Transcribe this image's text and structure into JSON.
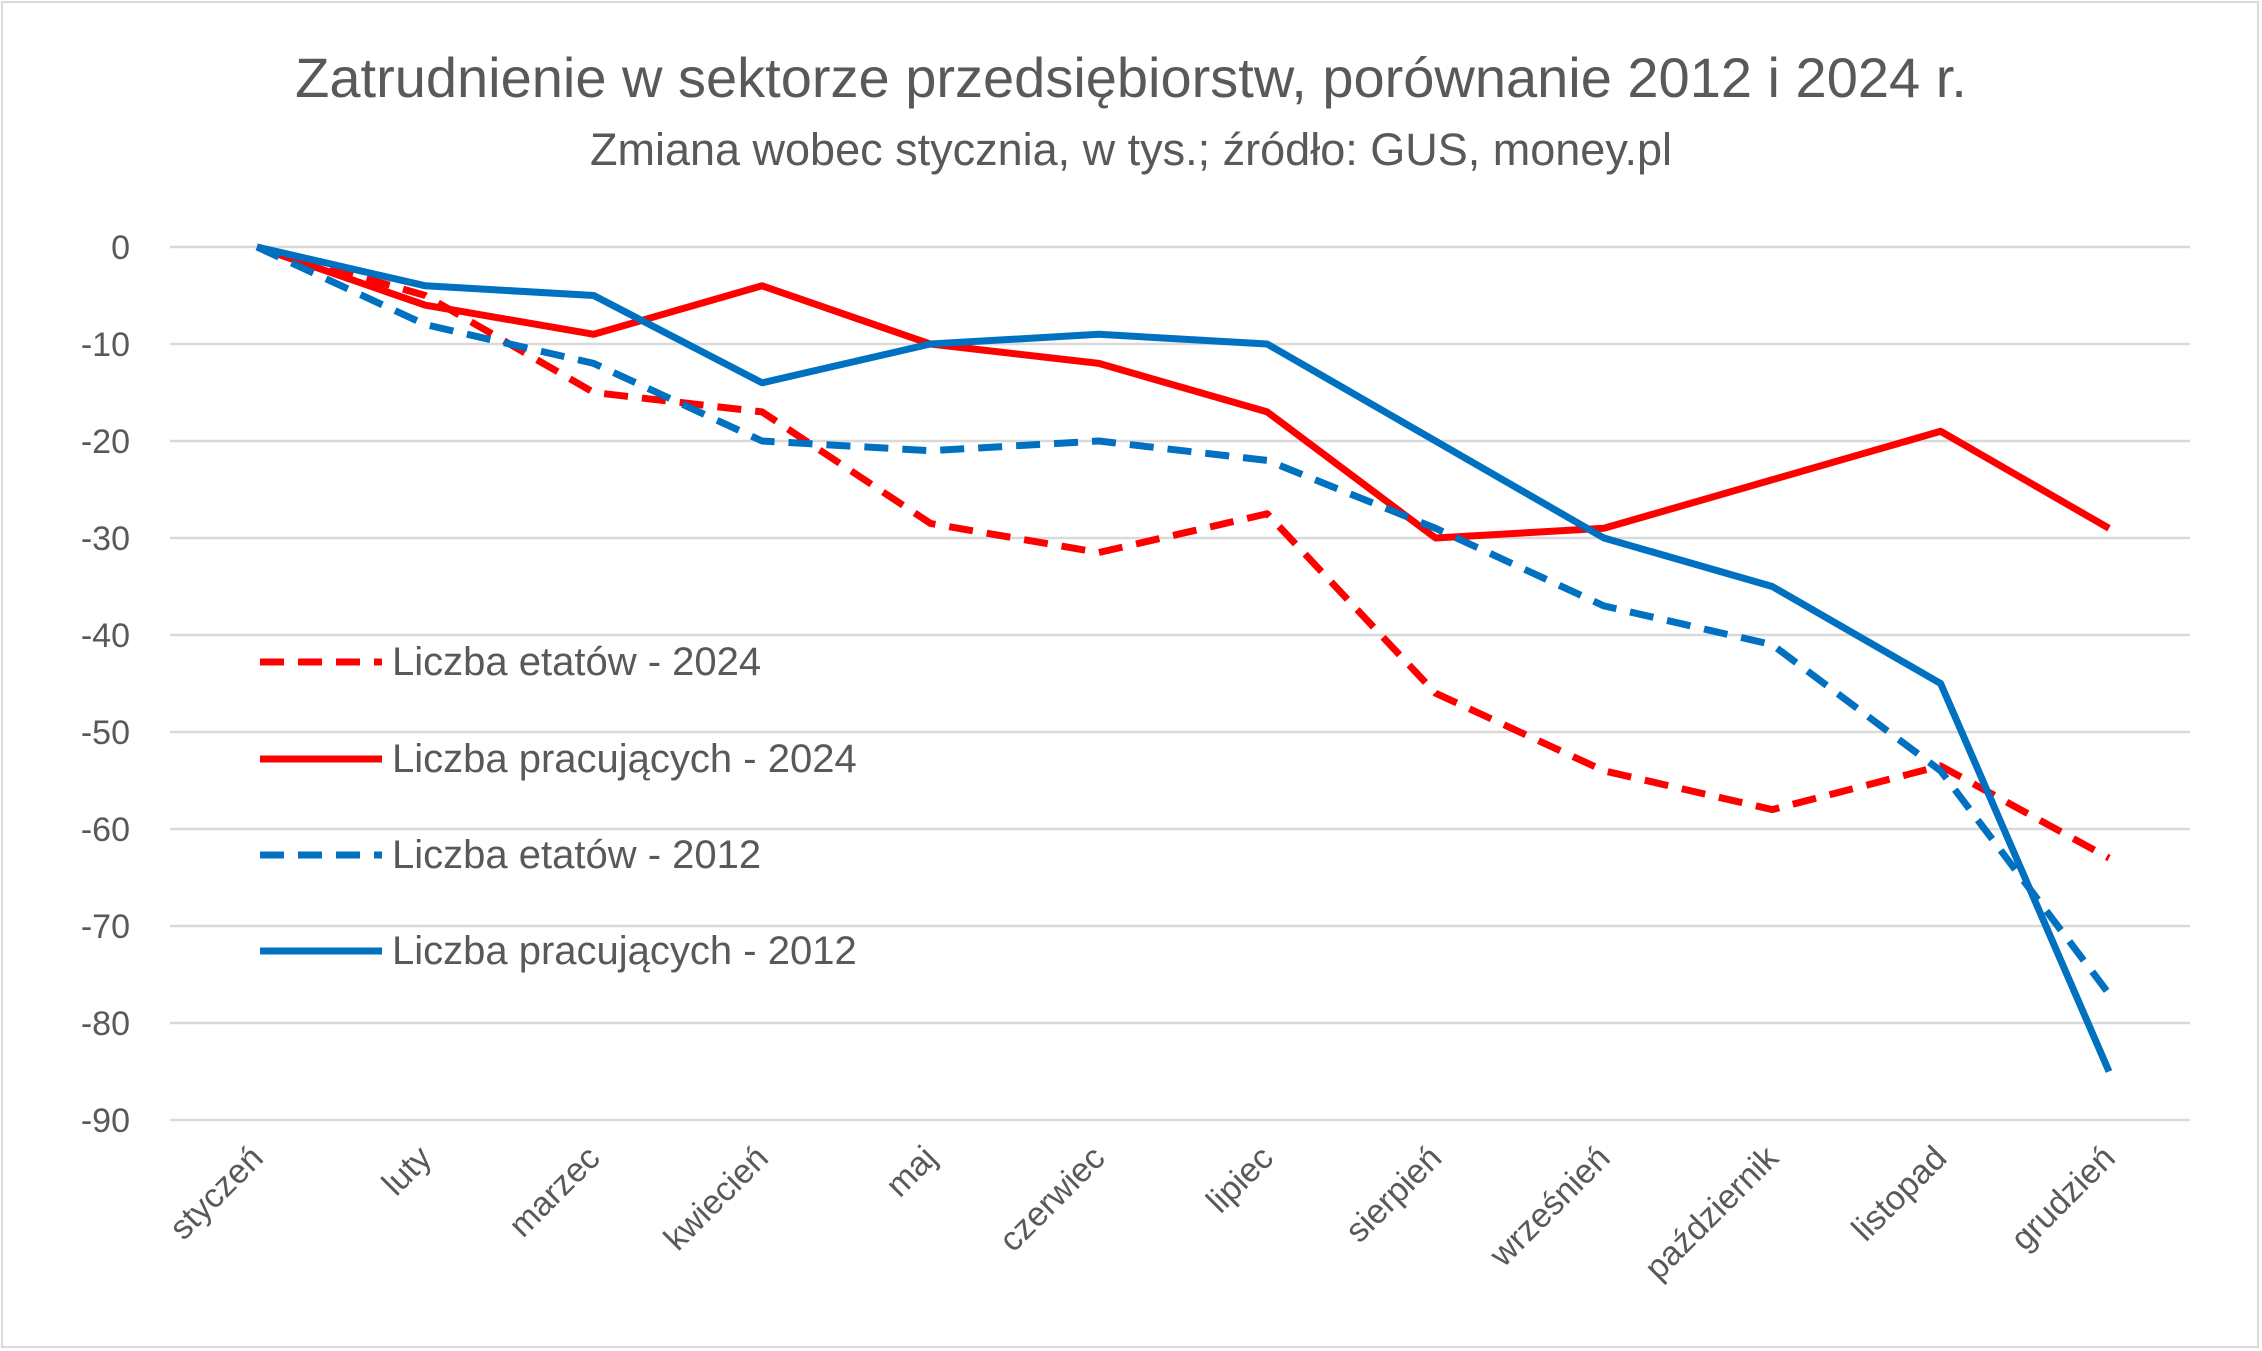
{
  "chart_data": {
    "type": "line",
    "title": "Zatrudnienie w sektorze przedsiębiorstw, porównanie 2012 i 2024 r.",
    "subtitle": "Zmiana wobec stycznia, w tys.; źródło: GUS, money.pl",
    "xlabel": "",
    "ylabel": "",
    "ylim": [
      -90,
      0
    ],
    "yticks": [
      0,
      -10,
      -20,
      -30,
      -40,
      -50,
      -60,
      -70,
      -80,
      -90
    ],
    "grid": true,
    "legend_position": "left-middle",
    "categories": [
      "styczeń",
      "luty",
      "marzec",
      "kwiecień",
      "maj",
      "czerwiec",
      "lipiec",
      "sierpień",
      "wrześnień",
      "październik",
      "listopad",
      "grudzień"
    ],
    "series": [
      {
        "name": "Liczba etatów - 2024",
        "color": "#ff0000",
        "dash": true,
        "values": [
          0,
          -5,
          -15,
          -17,
          -28.5,
          -31.5,
          -27.5,
          -46,
          -54,
          -58,
          -53.5,
          -63
        ]
      },
      {
        "name": "Liczba pracujących - 2024",
        "color": "#ff0000",
        "dash": false,
        "values": [
          0,
          -6,
          -9,
          -4,
          -10,
          -12,
          -17,
          -30,
          -29,
          -24,
          -19,
          -29
        ]
      },
      {
        "name": "Liczba etatów - 2012",
        "color": "#0070c0",
        "dash": true,
        "values": [
          0,
          -8,
          -12,
          -20,
          -21,
          -20,
          -22,
          -29,
          -37,
          -41,
          -54,
          -77
        ]
      },
      {
        "name": "Liczba pracujących - 2012",
        "color": "#0070c0",
        "dash": false,
        "values": [
          0,
          -4,
          -5,
          -14,
          -10,
          -9,
          -10,
          -20,
          -30,
          -35,
          -45,
          -85
        ]
      }
    ]
  }
}
